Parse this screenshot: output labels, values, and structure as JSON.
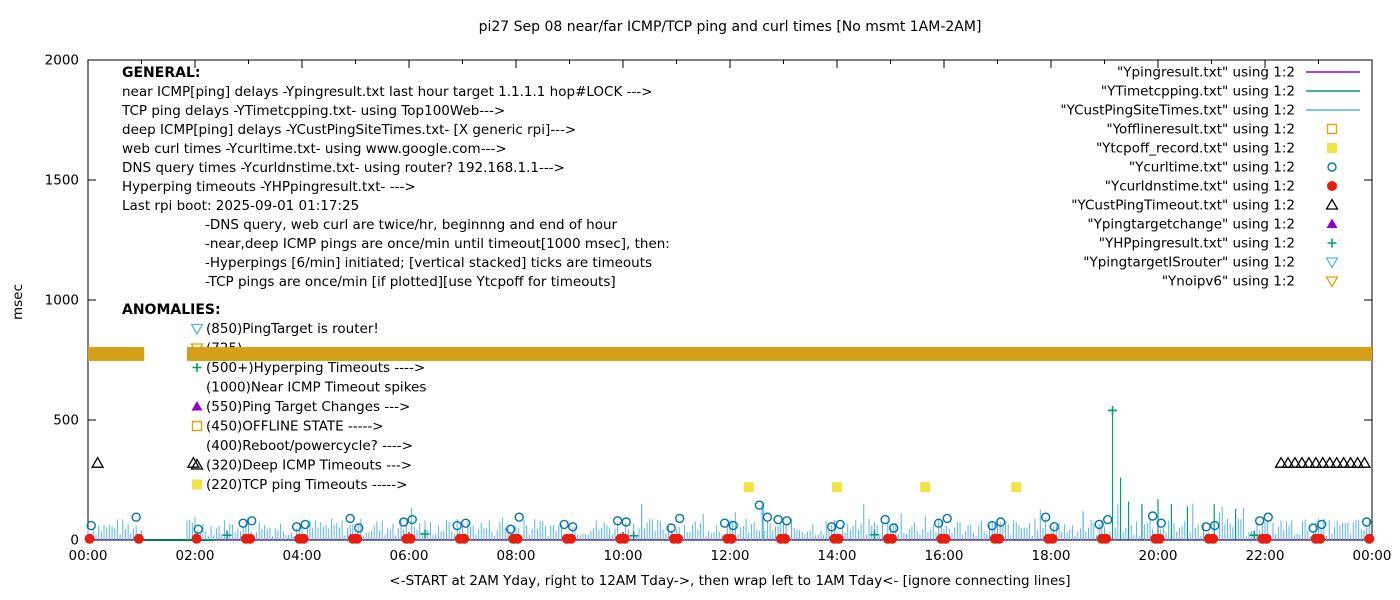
{
  "title": "pi27 Sep 08  near/far ICMP/TCP ping and curl times [No msmt 1AM-2AM]",
  "axes": {
    "ylabel": "msec",
    "xlabel": "<-START at 2AM Yday, right to 12AM Tday->, then wrap left to 1AM Tday<- [ignore connecting lines]",
    "y_ticks": [
      0,
      500,
      1000,
      1500,
      2000
    ],
    "x_tick_labels": [
      "00:00",
      "02:00",
      "04:00",
      "06:00",
      "08:00",
      "10:00",
      "12:00",
      "14:00",
      "16:00",
      "18:00",
      "20:00",
      "22:00",
      "00:00"
    ]
  },
  "legend": [
    {
      "label": "\"Ypingresult.txt\" using 1:2",
      "marker": "line",
      "color": "#9400D3"
    },
    {
      "label": "\"YTimetcpping.txt\" using 1:2",
      "marker": "line",
      "color": "#009E73"
    },
    {
      "label": "\"YCustPingSiteTimes.txt\" using 1:2",
      "marker": "line",
      "color": "#56B4E9"
    },
    {
      "label": "\"Yofflineresult.txt\" using 1:2",
      "marker": "square-open",
      "color": "#E69F00"
    },
    {
      "label": "\"Ytcpoff_record.txt\" using 1:2",
      "marker": "square-filled",
      "color": "#F0E442"
    },
    {
      "label": "\"Ycurltime.txt\" using 1:2",
      "marker": "circle-open",
      "color": "#0072B2"
    },
    {
      "label": "\"Ycurldnstime.txt\" using 1:2",
      "marker": "circle-filled",
      "color": "#E51E10"
    },
    {
      "label": "\"YCustPingTimeout.txt\" using 1:2",
      "marker": "triangle-open",
      "color": "#000000"
    },
    {
      "label": "\"Ypingtargetchange\" using 1:2",
      "marker": "triangle-filled",
      "color": "#9400D3"
    },
    {
      "label": "\"YHPpingresult.txt\" using 1:2",
      "marker": "plus",
      "color": "#009E73"
    },
    {
      "label": "\"YpingtargetISrouter\" using 1:2",
      "marker": "triangle-down-open",
      "color": "#56B4E9"
    },
    {
      "label": "\"Ynoipv6\" using 1:2",
      "marker": "triangle-down-open",
      "color": "#E69F00"
    }
  ],
  "general": {
    "heading": "GENERAL:",
    "lines": [
      "near ICMP[ping] delays -Ypingresult.txt last hour target 1.1.1.1 hop#LOCK --->",
      "TCP ping delays -YTimetcpping.txt- using Top100Web--->",
      "deep ICMP[ping] delays -YCustPingSiteTimes.txt- [X generic rpi]--->",
      "web curl times -Ycurltime.txt- using www.google.com--->",
      "DNS query times -Ycurldnstime.txt- using router? 192.168.1.1--->",
      "Hyperping timeouts -YHPpingresult.txt- --->",
      "Last rpi boot: 2025-09-01 01:17:25"
    ],
    "indented_lines": [
      "-DNS query, web curl are twice/hr, beginnng and end of hour",
      "-near,deep ICMP pings are once/min until timeout[1000 msec], then:",
      "-Hyperpings [6/min] initiated; [vertical stacked] ticks are timeouts",
      "-TCP pings are once/min [if plotted][use Ytcpoff for timeouts]"
    ]
  },
  "anomalies": {
    "heading": "ANOMALIES:",
    "items": [
      {
        "icon": "triangle-down-open",
        "color": "#56B4E9",
        "label": "(850)PingTarget is router!"
      },
      {
        "icon": "triangle-down-open",
        "color": "#E69F00",
        "label": "(725)"
      },
      {
        "icon": "plus",
        "color": "#009E73",
        "label": "(500+)Hyperping Timeouts ---->"
      },
      {
        "icon": null,
        "color": null,
        "label": "(1000)Near ICMP Timeout spikes"
      },
      {
        "icon": "triangle-filled",
        "color": "#9400D3",
        "label": "(550)Ping Target Changes --->"
      },
      {
        "icon": "square-open",
        "color": "#E69F00",
        "label": "(450)OFFLINE STATE ----->"
      },
      {
        "icon": null,
        "color": null,
        "label": "(400)Reboot/powercycle? ---->"
      },
      {
        "icon": "triangle-open",
        "color": "#000000",
        "label": "(320)Deep ICMP Timeouts --->"
      },
      {
        "icon": "square-filled",
        "color": "#F0E442",
        "label": "(220)TCP ping Timeouts ----->"
      }
    ]
  },
  "chart_data": {
    "type": "scatter",
    "title": "pi27 Sep 08  near/far ICMP/TCP ping and curl times [No msmt 1AM-2AM]",
    "xlabel": "<-START at 2AM Yday, right to 12AM Tday->, then wrap left to 1AM Tday<- [ignore connecting lines]",
    "ylabel": "msec",
    "ylim": [
      0,
      2000
    ],
    "xlim_hours": [
      0,
      24
    ],
    "no_measurement_gap_hours": [
      1.05,
      1.85
    ],
    "series": [
      {
        "name": "Ynoipv6_band",
        "style": "band",
        "color": "#D4A017",
        "y_center": 775,
        "y_halfwidth": 29,
        "segments": [
          [
            0,
            1.05
          ],
          [
            1.85,
            24
          ]
        ]
      },
      {
        "name": "Ypingresult_baseline",
        "style": "hline",
        "color": "#9400D3",
        "y": 2,
        "width": 1,
        "segments": [
          [
            0,
            1.05
          ],
          [
            1.85,
            24
          ]
        ]
      },
      {
        "name": "YTimetcpping_gap_connector",
        "style": "hline",
        "color": "#007a54",
        "y": 0,
        "width": 2,
        "segments": [
          [
            1.0,
            2.35
          ]
        ]
      },
      {
        "name": "hyperping_tick_comb",
        "style": "comb",
        "color": "#56B4E9",
        "x_start": 0,
        "x_end": 24,
        "step_hours": 0.05,
        "skip": [
          1.05,
          1.85
        ],
        "height_min": 15,
        "height_max": 90,
        "tall_chance": 0.06,
        "tall_factor": 1.7,
        "seed": 7
      },
      {
        "name": "extra_blue_spikes",
        "style": "vlines",
        "color": "#56B4E9",
        "points": [
          [
            10.35,
            150
          ],
          [
            12.62,
            155
          ],
          [
            18.6,
            120
          ]
        ]
      },
      {
        "name": "tcp_green_spikes",
        "style": "vlines",
        "color": "#009E73",
        "points": [
          [
            19.15,
            530
          ],
          [
            19.3,
            260
          ],
          [
            19.45,
            160
          ],
          [
            19.7,
            150
          ],
          [
            20.0,
            170
          ],
          [
            20.25,
            150
          ],
          [
            20.55,
            140
          ],
          [
            21.05,
            150
          ],
          [
            21.45,
            130
          ]
        ]
      },
      {
        "name": "Ycurltime_circles",
        "style": "scatter",
        "marker": "circle-open",
        "color": "#0072B2",
        "points": [
          [
            0.06,
            60
          ],
          [
            0.9,
            95
          ],
          [
            2.06,
            45
          ],
          [
            2.9,
            70
          ],
          [
            3.06,
            80
          ],
          [
            3.9,
            55
          ],
          [
            4.06,
            65
          ],
          [
            4.9,
            90
          ],
          [
            5.06,
            50
          ],
          [
            5.9,
            75
          ],
          [
            6.06,
            85
          ],
          [
            6.9,
            60
          ],
          [
            7.06,
            70
          ],
          [
            7.9,
            45
          ],
          [
            8.06,
            95
          ],
          [
            8.9,
            65
          ],
          [
            9.06,
            55
          ],
          [
            9.9,
            80
          ],
          [
            10.06,
            75
          ],
          [
            10.9,
            50
          ],
          [
            11.06,
            90
          ],
          [
            11.9,
            70
          ],
          [
            12.06,
            60
          ],
          [
            12.55,
            145
          ],
          [
            12.7,
            95
          ],
          [
            12.9,
            85
          ],
          [
            13.06,
            80
          ],
          [
            13.9,
            55
          ],
          [
            14.06,
            65
          ],
          [
            14.9,
            85
          ],
          [
            15.06,
            50
          ],
          [
            15.9,
            70
          ],
          [
            16.06,
            90
          ],
          [
            16.9,
            60
          ],
          [
            17.06,
            75
          ],
          [
            17.9,
            95
          ],
          [
            18.06,
            55
          ],
          [
            18.9,
            65
          ],
          [
            19.06,
            85
          ],
          [
            19.9,
            100
          ],
          [
            20.06,
            70
          ],
          [
            20.9,
            55
          ],
          [
            21.06,
            60
          ],
          [
            21.9,
            80
          ],
          [
            22.06,
            95
          ],
          [
            22.9,
            50
          ],
          [
            23.06,
            65
          ],
          [
            23.9,
            75
          ]
        ]
      },
      {
        "name": "Ycurldnstime_dots",
        "style": "scatter",
        "marker": "circle-filled",
        "color": "#E51E10",
        "points": [
          [
            0.03,
            5
          ],
          [
            0.95,
            5
          ],
          [
            2.03,
            5
          ],
          [
            2.95,
            5
          ],
          [
            3.03,
            5
          ],
          [
            3.95,
            5
          ],
          [
            4.03,
            5
          ],
          [
            4.95,
            5
          ],
          [
            5.03,
            5
          ],
          [
            5.95,
            5
          ],
          [
            6.03,
            5
          ],
          [
            6.95,
            5
          ],
          [
            7.03,
            5
          ],
          [
            7.95,
            5
          ],
          [
            8.03,
            5
          ],
          [
            8.95,
            5
          ],
          [
            9.03,
            5
          ],
          [
            9.95,
            5
          ],
          [
            10.03,
            5
          ],
          [
            10.95,
            5
          ],
          [
            11.03,
            5
          ],
          [
            11.95,
            5
          ],
          [
            12.03,
            5
          ],
          [
            12.95,
            5
          ],
          [
            13.03,
            5
          ],
          [
            13.95,
            5
          ],
          [
            14.03,
            5
          ],
          [
            14.95,
            5
          ],
          [
            15.03,
            5
          ],
          [
            15.95,
            5
          ],
          [
            16.03,
            5
          ],
          [
            16.95,
            5
          ],
          [
            17.03,
            5
          ],
          [
            17.95,
            5
          ],
          [
            18.03,
            5
          ],
          [
            18.95,
            5
          ],
          [
            19.03,
            5
          ],
          [
            19.95,
            5
          ],
          [
            20.03,
            5
          ],
          [
            20.95,
            5
          ],
          [
            21.03,
            5
          ],
          [
            21.95,
            5
          ],
          [
            22.03,
            5
          ],
          [
            22.95,
            5
          ],
          [
            23.03,
            5
          ],
          [
            23.95,
            5
          ]
        ]
      },
      {
        "name": "Ytcpoff_squares",
        "style": "scatter",
        "marker": "square-filled",
        "color": "#F0E442",
        "points": [
          [
            12.35,
            220
          ],
          [
            14.0,
            220
          ],
          [
            15.65,
            220
          ],
          [
            17.35,
            220
          ]
        ]
      },
      {
        "name": "YCustPingTimeout_triangles",
        "style": "scatter",
        "marker": "triangle-open",
        "color": "#000000",
        "points": [
          [
            0.18,
            320
          ],
          [
            1.97,
            320
          ],
          [
            22.3,
            320
          ],
          [
            22.43,
            320
          ],
          [
            22.56,
            320
          ],
          [
            22.69,
            320
          ],
          [
            22.82,
            320
          ],
          [
            22.95,
            320
          ],
          [
            23.08,
            320
          ],
          [
            23.21,
            320
          ],
          [
            23.34,
            320
          ],
          [
            23.47,
            320
          ],
          [
            23.6,
            320
          ],
          [
            23.73,
            320
          ],
          [
            23.86,
            320
          ]
        ]
      },
      {
        "name": "YHPpingresult_plus",
        "style": "scatter",
        "marker": "plus",
        "color": "#009E73",
        "points": [
          [
            2.6,
            20
          ],
          [
            6.3,
            25
          ],
          [
            10.2,
            18
          ],
          [
            14.7,
            22
          ],
          [
            19.15,
            540
          ],
          [
            21.8,
            20
          ]
        ]
      }
    ]
  }
}
